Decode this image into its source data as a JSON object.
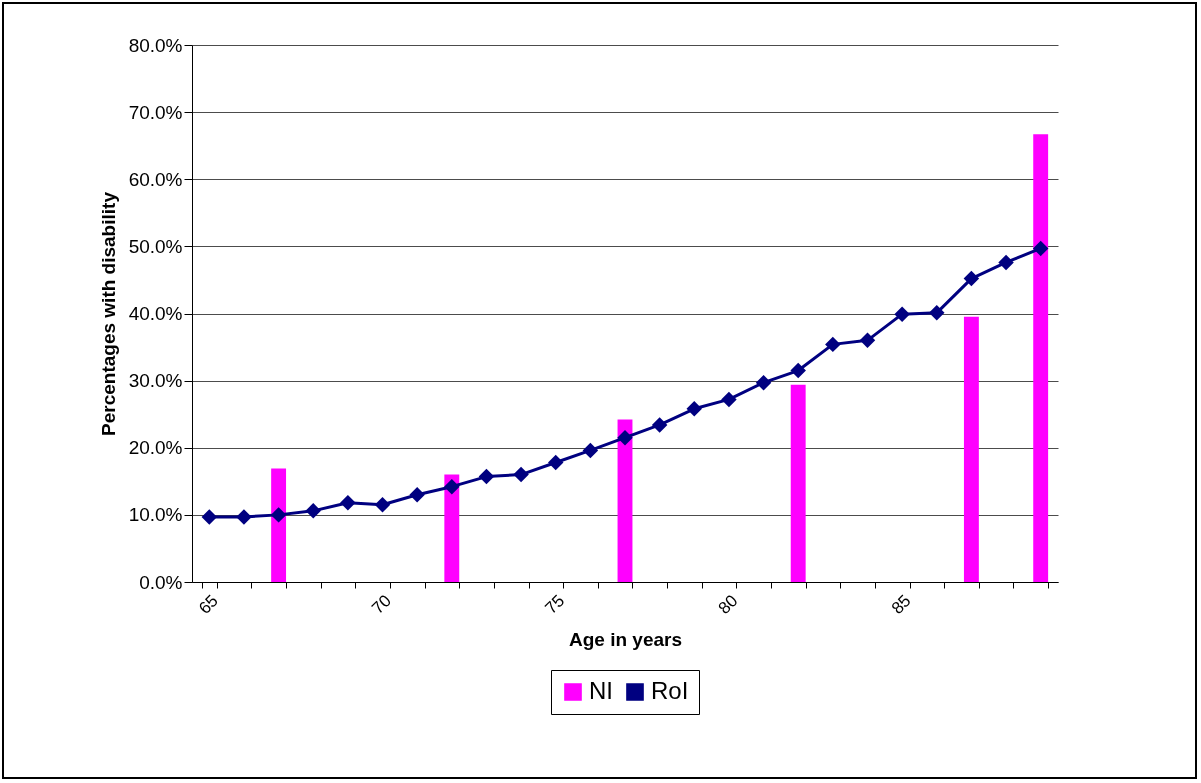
{
  "chart_data": {
    "type": "bar",
    "xlabel": "Age in years",
    "ylabel": "Percentages with disability",
    "categories": [
      "65",
      null,
      null,
      null,
      null,
      "70",
      null,
      null,
      null,
      null,
      "75",
      null,
      null,
      null,
      null,
      "80",
      null,
      null,
      null,
      null,
      "85",
      null,
      null,
      null,
      null
    ],
    "series": [
      {
        "name": "NI",
        "color": "#ff00ff",
        "values": [
          null,
          null,
          16.9,
          null,
          null,
          null,
          null,
          16.0,
          null,
          null,
          null,
          null,
          24.2,
          null,
          null,
          null,
          null,
          29.4,
          null,
          null,
          null,
          null,
          39.5,
          null,
          66.7
        ]
      },
      {
        "name": "RoI",
        "type": "line",
        "color": "#000080",
        "marker": "diamond",
        "values": [
          9.7,
          9.7,
          10.0,
          10.6,
          11.8,
          11.5,
          13.0,
          14.2,
          15.7,
          16.0,
          17.8,
          19.6,
          21.5,
          23.4,
          25.8,
          27.2,
          29.7,
          31.5,
          35.4,
          36.0,
          39.9,
          40.1,
          45.2,
          47.6,
          49.7
        ]
      }
    ],
    "ylim": [
      0,
      80
    ],
    "yticks": [
      {
        "value": 0,
        "label": "0.0%"
      },
      {
        "value": 10,
        "label": "10.0%"
      },
      {
        "value": 20,
        "label": "20.0%"
      },
      {
        "value": 30,
        "label": "30.0%"
      },
      {
        "value": 40,
        "label": "40.0%"
      },
      {
        "value": 50,
        "label": "50.0%"
      },
      {
        "value": 60,
        "label": "60.0%"
      },
      {
        "value": 70,
        "label": "70.0%"
      },
      {
        "value": 80,
        "label": "80.0%"
      }
    ],
    "grid": "y",
    "legend": "bottom"
  }
}
